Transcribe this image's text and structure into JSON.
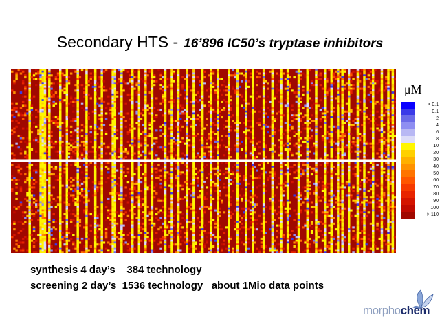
{
  "title": {
    "main": "Secondary HTS -",
    "subtitle": "16’896 IC50’s tryptase inhibitors"
  },
  "notes": [
    "synthesis 4 day’s    384 technology",
    "screening 2 day’s  1536 technology   about 1Mio data points"
  ],
  "logo": {
    "part1": "morpho",
    "part2": "chem"
  },
  "chart_data": {
    "type": "heatmap",
    "title": "Secondary HTS - 16’896 IC50’s tryptase inhibitors",
    "value_unit": "μM",
    "colorbar": {
      "unit_label": "μM",
      "labels": [
        "< 0.1",
        "0.1",
        "2",
        "4",
        "6",
        "8",
        "10",
        "20",
        "30",
        "40",
        "50",
        "60",
        "70",
        "80",
        "90",
        "100",
        "> 110"
      ],
      "colors": [
        "#0a00ff",
        "#3a3ae8",
        "#6a6ae8",
        "#8e8ef2",
        "#b8b8f4",
        "#dcdcf8",
        "#fff600",
        "#ffd000",
        "#ffb000",
        "#ff9200",
        "#ff7400",
        "#ff5600",
        "#f63a00",
        "#e82400",
        "#d41400",
        "#c00a00",
        "#a00800"
      ]
    },
    "grid": {
      "columns": 176,
      "rows_per_block": 48,
      "blocks": 2,
      "separator": "horizontal white line"
    },
    "dominant_value": "> 110",
    "bright_columns": [
      8,
      13,
      14,
      15,
      17,
      22,
      25,
      30,
      34,
      38,
      41,
      46,
      47,
      50,
      55,
      58,
      61,
      64,
      70,
      73,
      76,
      80,
      83,
      87,
      91,
      94,
      99,
      103,
      107,
      110,
      115,
      119,
      123,
      126,
      131,
      135,
      139,
      143,
      146,
      149,
      151,
      154,
      158,
      161,
      165,
      169,
      172,
      174
    ]
  }
}
